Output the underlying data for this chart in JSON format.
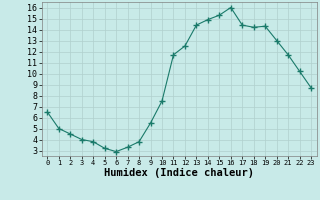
{
  "x": [
    0,
    1,
    2,
    3,
    4,
    5,
    6,
    7,
    8,
    9,
    10,
    11,
    12,
    13,
    14,
    15,
    16,
    17,
    18,
    19,
    20,
    21,
    22,
    23
  ],
  "y": [
    6.5,
    5.0,
    4.5,
    4.0,
    3.8,
    3.2,
    2.9,
    3.3,
    3.8,
    5.5,
    7.5,
    11.7,
    12.5,
    14.4,
    14.9,
    15.3,
    16.0,
    14.4,
    14.2,
    14.3,
    13.0,
    11.7,
    10.2,
    8.7
  ],
  "line_color": "#1a7a6a",
  "marker": "+",
  "marker_size": 4,
  "bg_color": "#c8eae8",
  "grid_color": "#b0d0ce",
  "xlabel": "Humidex (Indice chaleur)",
  "xlim": [
    -0.5,
    23.5
  ],
  "ylim": [
    2.5,
    16.5
  ],
  "yticks": [
    3,
    4,
    5,
    6,
    7,
    8,
    9,
    10,
    11,
    12,
    13,
    14,
    15,
    16
  ],
  "xticks": [
    0,
    1,
    2,
    3,
    4,
    5,
    6,
    7,
    8,
    9,
    10,
    11,
    12,
    13,
    14,
    15,
    16,
    17,
    18,
    19,
    20,
    21,
    22,
    23
  ]
}
